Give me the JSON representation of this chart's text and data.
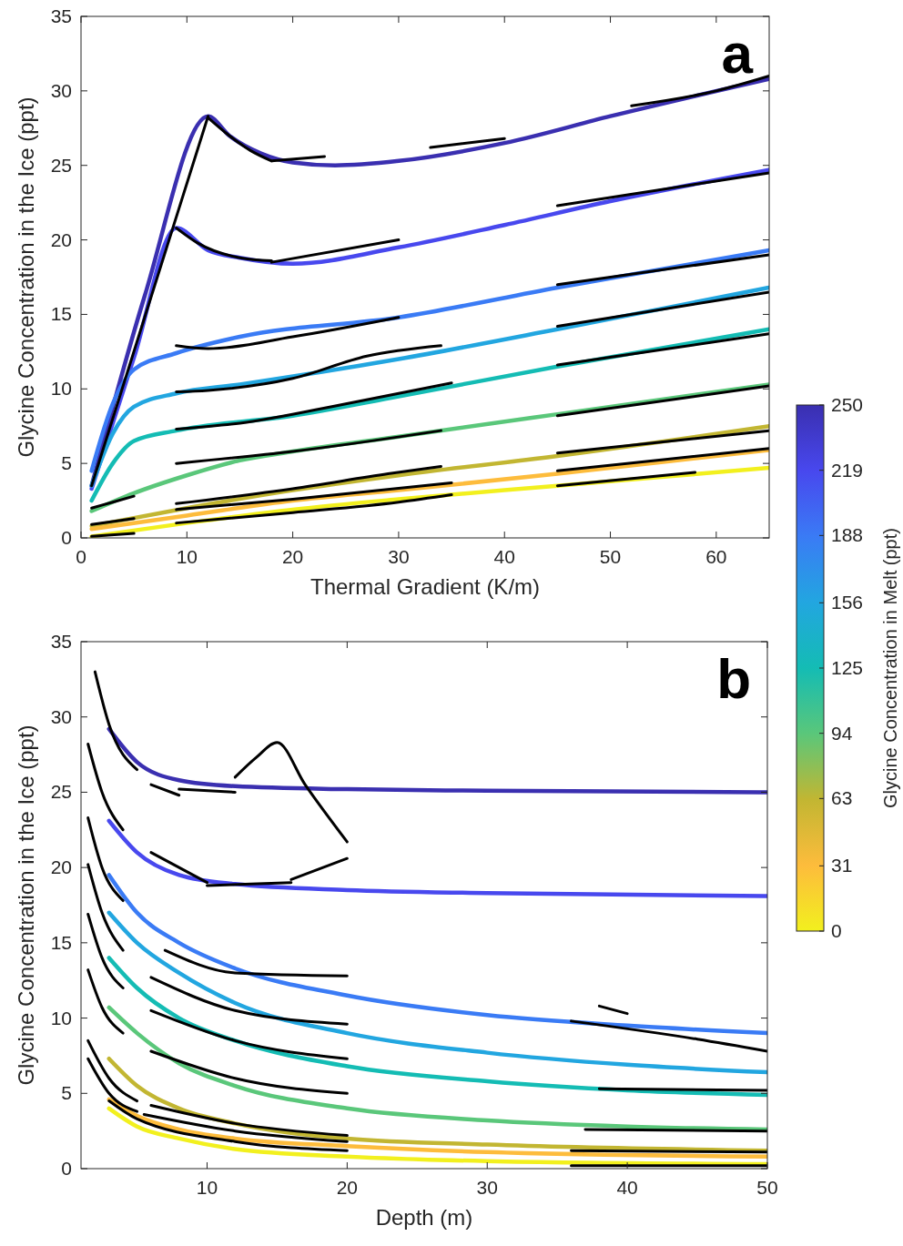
{
  "chart_data": [
    {
      "type": "line",
      "xlabel": "Thermal Gradient (K/m)",
      "ylabel": "Glycine Concentration in the Ice (ppt)",
      "clabel": "Glycine Concentration in Melt (ppt)",
      "clim": [
        0,
        250
      ],
      "cticks": [
        0,
        31,
        63,
        94,
        125,
        156,
        188,
        219,
        250
      ],
      "annotations": [
        "a"
      ],
      "xlim": [
        0,
        65
      ],
      "ylim": [
        0,
        35
      ],
      "xticks": [
        0,
        10,
        20,
        30,
        40,
        50,
        60
      ],
      "yticks": [
        0,
        5,
        10,
        15,
        20,
        25,
        30,
        35
      ],
      "grid": false,
      "series": [
        {
          "color": "#3a2fb0",
          "x": [
            1,
            6,
            12,
            14,
            17,
            20,
            24,
            30,
            40,
            50,
            65
          ],
          "values": [
            3.5,
            16.2,
            28.3,
            27,
            25.8,
            25.2,
            25,
            25.3,
            26.5,
            28.3,
            30.8
          ]
        },
        {
          "color": "#4848ee",
          "x": [
            1,
            5,
            9,
            12,
            15,
            20,
            30,
            40,
            50,
            65
          ],
          "values": [
            3.3,
            12.1,
            20.8,
            19.3,
            18.8,
            18.4,
            19.5,
            21,
            22.6,
            24.7
          ]
        },
        {
          "color": "#3a7bf5",
          "x": [
            1,
            3,
            5,
            9,
            15,
            30,
            45,
            65
          ],
          "values": [
            4.5,
            9,
            11.3,
            12.4,
            13.5,
            14.8,
            16.8,
            19.3
          ]
        },
        {
          "color": "#22a6e0",
          "x": [
            1,
            3,
            5,
            9,
            15,
            30,
            45,
            65
          ],
          "values": [
            3.5,
            7,
            8.8,
            9.7,
            10.3,
            12,
            14,
            16.8
          ]
        },
        {
          "color": "#14bcb4",
          "x": [
            1,
            3,
            5,
            9,
            20,
            30,
            45,
            65
          ],
          "values": [
            2.5,
            5,
            6.5,
            7.2,
            8.2,
            9.5,
            11.5,
            14
          ]
        },
        {
          "color": "#5ac77a",
          "x": [
            1,
            5,
            10,
            15,
            20,
            30,
            45,
            65
          ],
          "values": [
            1.8,
            3,
            4.2,
            5.2,
            5.8,
            6.8,
            8.3,
            10.3
          ]
        },
        {
          "color": "#c2b632",
          "x": [
            1,
            10,
            20,
            30,
            45,
            65
          ],
          "values": [
            0.8,
            2,
            3.2,
            4.2,
            5.5,
            7.5
          ]
        },
        {
          "color": "#fdbc3c",
          "x": [
            1,
            10,
            20,
            30,
            45,
            65
          ],
          "values": [
            0.6,
            1.5,
            2.5,
            3.2,
            4.3,
            5.9
          ]
        },
        {
          "color": "#f2f01e",
          "x": [
            1,
            10,
            20,
            30,
            45,
            65
          ],
          "values": [
            0.1,
            1,
            1.9,
            2.6,
            3.5,
            4.7
          ]
        },
        {
          "color": "#000000",
          "x": [
            1,
            12
          ],
          "values": [
            3.5,
            28.3
          ]
        },
        {
          "color": "#000000",
          "x": [
            12,
            14,
            16,
            18
          ],
          "values": [
            28.2,
            27,
            26,
            25.3
          ]
        },
        {
          "color": "#000000",
          "x": [
            18,
            23
          ],
          "values": [
            25.3,
            25.6
          ]
        },
        {
          "color": "#000000",
          "x": [
            33,
            40
          ],
          "values": [
            26.2,
            26.8
          ]
        },
        {
          "color": "#000000",
          "x": [
            52,
            60,
            65
          ],
          "values": [
            29,
            30,
            31
          ]
        },
        {
          "color": "#000000",
          "x": [
            9,
            11,
            15,
            18
          ],
          "values": [
            20.8,
            19.8,
            18.8,
            18.6
          ]
        },
        {
          "color": "#000000",
          "x": [
            18,
            30
          ],
          "values": [
            18.5,
            20
          ]
        },
        {
          "color": "#000000",
          "x": [
            45,
            65
          ],
          "values": [
            22.3,
            24.5
          ]
        },
        {
          "color": "#000000",
          "x": [
            9,
            12,
            20,
            30
          ],
          "values": [
            12.9,
            12.7,
            13.5,
            14.8
          ]
        },
        {
          "color": "#000000",
          "x": [
            45,
            65
          ],
          "values": [
            17,
            19
          ]
        },
        {
          "color": "#000000",
          "x": [
            9,
            12,
            20,
            27,
            34
          ],
          "values": [
            9.8,
            9.9,
            10.7,
            12.2,
            12.9
          ]
        },
        {
          "color": "#000000",
          "x": [
            45,
            65
          ],
          "values": [
            14.2,
            16.5
          ]
        },
        {
          "color": "#000000",
          "x": [
            9,
            15,
            25,
            35
          ],
          "values": [
            7.3,
            7.7,
            9,
            10.4
          ]
        },
        {
          "color": "#000000",
          "x": [
            45,
            65
          ],
          "values": [
            11.6,
            13.7
          ]
        },
        {
          "color": "#000000",
          "x": [
            1,
            3,
            5
          ],
          "values": [
            2,
            2.4,
            2.8
          ]
        },
        {
          "color": "#000000",
          "x": [
            9,
            20,
            34
          ],
          "values": [
            5,
            5.8,
            7.2
          ]
        },
        {
          "color": "#000000",
          "x": [
            45,
            65
          ],
          "values": [
            8.2,
            10.2
          ]
        },
        {
          "color": "#000000",
          "x": [
            1,
            5
          ],
          "values": [
            0.9,
            1.3
          ]
        },
        {
          "color": "#000000",
          "x": [
            9,
            20,
            29,
            34
          ],
          "values": [
            2.3,
            3.3,
            4.3,
            4.8
          ]
        },
        {
          "color": "#000000",
          "x": [
            45,
            65
          ],
          "values": [
            5.7,
            7.2
          ]
        },
        {
          "color": "#000000",
          "x": [
            9,
            20,
            35
          ],
          "values": [
            1.9,
            2.6,
            3.7
          ]
        },
        {
          "color": "#000000",
          "x": [
            45,
            65
          ],
          "values": [
            4.5,
            6
          ]
        },
        {
          "color": "#000000",
          "x": [
            1,
            5
          ],
          "values": [
            0.1,
            0.3
          ]
        },
        {
          "color": "#000000",
          "x": [
            9,
            20,
            30,
            35
          ],
          "values": [
            1,
            1.7,
            2.4,
            2.9
          ]
        },
        {
          "color": "#000000",
          "x": [
            45,
            58
          ],
          "values": [
            3.5,
            4.4
          ]
        }
      ]
    },
    {
      "type": "line",
      "xlabel": "Depth (m)",
      "ylabel": "Glycine Concentration in the Ice (ppt)",
      "annotations": [
        "b"
      ],
      "xlim": [
        1,
        50
      ],
      "ylim": [
        0,
        35
      ],
      "xticks": [
        10,
        20,
        30,
        40,
        50
      ],
      "yticks": [
        0,
        5,
        10,
        15,
        20,
        25,
        30,
        35
      ],
      "grid": false,
      "series": [
        {
          "color": "#3a2fb0",
          "x": [
            3,
            5,
            8,
            12,
            20,
            30,
            50
          ],
          "values": [
            29.2,
            27,
            25.8,
            25.4,
            25.2,
            25.1,
            25
          ]
        },
        {
          "color": "#4848ee",
          "x": [
            3,
            5,
            8,
            12,
            20,
            30,
            50
          ],
          "values": [
            23.1,
            21,
            19.5,
            18.9,
            18.5,
            18.3,
            18.1
          ]
        },
        {
          "color": "#3a7bf5",
          "x": [
            3,
            5,
            8,
            12,
            20,
            30,
            40,
            50
          ],
          "values": [
            19.5,
            17,
            15,
            13.3,
            11.5,
            10.2,
            9.5,
            9
          ]
        },
        {
          "color": "#22a6e0",
          "x": [
            3,
            5,
            8,
            12,
            20,
            30,
            40,
            50
          ],
          "values": [
            17,
            15,
            13,
            11,
            9,
            7.7,
            6.9,
            6.4
          ]
        },
        {
          "color": "#14bcb4",
          "x": [
            3,
            5,
            8,
            12,
            20,
            30,
            40,
            50
          ],
          "values": [
            14,
            12,
            10,
            8.5,
            6.8,
            5.8,
            5.2,
            4.9
          ]
        },
        {
          "color": "#5ac77a",
          "x": [
            3,
            5,
            8,
            12,
            20,
            30,
            40,
            50
          ],
          "values": [
            10.7,
            9,
            7,
            5.5,
            4,
            3.2,
            2.8,
            2.6
          ]
        },
        {
          "color": "#c2b632",
          "x": [
            3,
            5,
            8,
            12,
            20,
            30,
            50
          ],
          "values": [
            7.3,
            5.5,
            4,
            3,
            2,
            1.6,
            1.2
          ]
        },
        {
          "color": "#fdbc3c",
          "x": [
            3,
            5,
            8,
            12,
            20,
            30,
            50
          ],
          "values": [
            4.6,
            3.5,
            2.6,
            2,
            1.5,
            1.1,
            0.8
          ]
        },
        {
          "color": "#f2f01e",
          "x": [
            3,
            5,
            8,
            12,
            20,
            30,
            50
          ],
          "values": [
            4,
            2.8,
            2,
            1.3,
            0.8,
            0.5,
            0.3
          ]
        },
        {
          "color": "#000000",
          "x": [
            2,
            3,
            5
          ],
          "values": [
            33,
            29.5,
            26.5
          ]
        },
        {
          "color": "#000000",
          "x": [
            6,
            8
          ],
          "values": [
            25.5,
            24.8
          ]
        },
        {
          "color": "#000000",
          "x": [
            8,
            12
          ],
          "values": [
            25.2,
            25
          ]
        },
        {
          "color": "#000000",
          "x": [
            12,
            13.5,
            15,
            17,
            20
          ],
          "values": [
            26,
            27.3,
            28.3,
            25.5,
            21.7
          ]
        },
        {
          "color": "#000000",
          "x": [
            1.5,
            2.5,
            4
          ],
          "values": [
            28.2,
            25,
            22.5
          ]
        },
        {
          "color": "#000000",
          "x": [
            6,
            10
          ],
          "values": [
            21,
            19
          ]
        },
        {
          "color": "#000000",
          "x": [
            10,
            16
          ],
          "values": [
            18.8,
            19
          ]
        },
        {
          "color": "#000000",
          "x": [
            16,
            20
          ],
          "values": [
            19.2,
            20.6
          ]
        },
        {
          "color": "#000000",
          "x": [
            1.5,
            2.5,
            4
          ],
          "values": [
            23.3,
            20,
            17.8
          ]
        },
        {
          "color": "#000000",
          "x": [
            7,
            12,
            20
          ],
          "values": [
            14.5,
            13,
            12.8
          ]
        },
        {
          "color": "#000000",
          "x": [
            36,
            45,
            50
          ],
          "values": [
            9.8,
            8.6,
            7.8
          ]
        },
        {
          "color": "#000000",
          "x": [
            38,
            40
          ],
          "values": [
            10.8,
            10.3
          ]
        },
        {
          "color": "#000000",
          "x": [
            1.5,
            2.5,
            4
          ],
          "values": [
            20.2,
            17,
            14.5
          ]
        },
        {
          "color": "#000000",
          "x": [
            6,
            12,
            20
          ],
          "values": [
            12.7,
            10.5,
            9.6
          ]
        },
        {
          "color": "#000000",
          "x": [
            1.5,
            2.5,
            4
          ],
          "values": [
            16.9,
            14,
            12
          ]
        },
        {
          "color": "#000000",
          "x": [
            6,
            12,
            20
          ],
          "values": [
            10.5,
            8.5,
            7.3
          ]
        },
        {
          "color": "#000000",
          "x": [
            1.5,
            2.5,
            4
          ],
          "values": [
            13.2,
            10.7,
            9
          ]
        },
        {
          "color": "#000000",
          "x": [
            6,
            12,
            20
          ],
          "values": [
            7.8,
            6,
            5
          ]
        },
        {
          "color": "#000000",
          "x": [
            1.5,
            3,
            5
          ],
          "values": [
            8.5,
            6,
            4.5
          ]
        },
        {
          "color": "#000000",
          "x": [
            6,
            12,
            20
          ],
          "values": [
            4.2,
            3,
            2.2
          ]
        },
        {
          "color": "#000000",
          "x": [
            38,
            50
          ],
          "values": [
            5.3,
            5.2
          ]
        },
        {
          "color": "#000000",
          "x": [
            1.5,
            3,
            5
          ],
          "values": [
            7.3,
            5,
            3.8
          ]
        },
        {
          "color": "#000000",
          "x": [
            5.5,
            12,
            20
          ],
          "values": [
            3.6,
            2.5,
            1.8
          ]
        },
        {
          "color": "#000000",
          "x": [
            37,
            50
          ],
          "values": [
            2.6,
            2.5
          ]
        },
        {
          "color": "#000000",
          "x": [
            3,
            5,
            12,
            20
          ],
          "values": [
            4.5,
            3.3,
            1.8,
            1.2
          ]
        },
        {
          "color": "#000000",
          "x": [
            36,
            50
          ],
          "values": [
            1.2,
            1.1
          ]
        },
        {
          "color": "#000000",
          "x": [
            36,
            50
          ],
          "values": [
            0.2,
            0.2
          ]
        }
      ]
    }
  ]
}
